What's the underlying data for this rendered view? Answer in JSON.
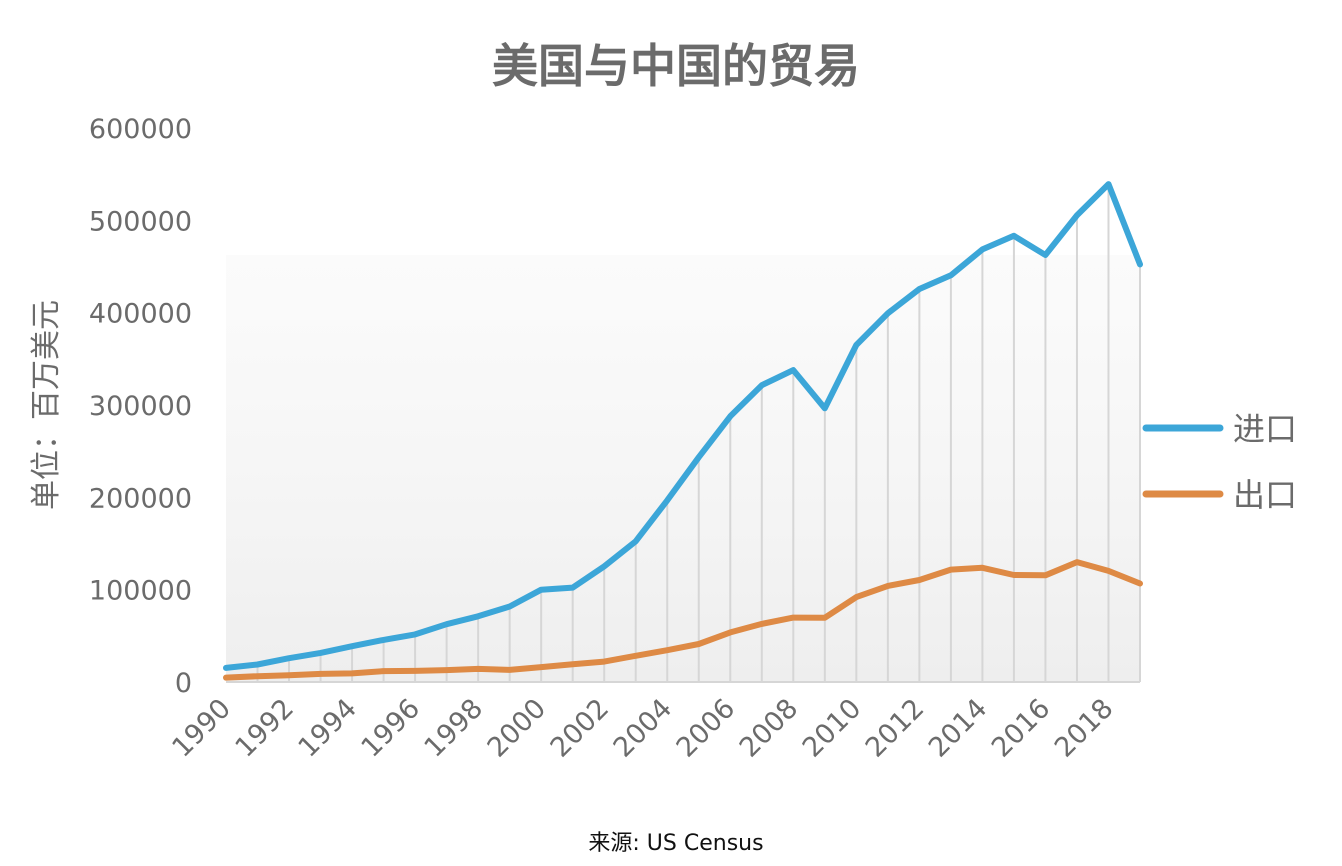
{
  "chart_data": {
    "type": "line",
    "title": "美国与中国的贸易",
    "xlabel": "",
    "ylabel": "单位：百万美元",
    "source": "来源: US Census",
    "ylim": [
      0,
      600000
    ],
    "yticks": [
      "0",
      "100000",
      "200000",
      "300000",
      "400000",
      "500000",
      "600000"
    ],
    "ytick_values": [
      0,
      100000,
      200000,
      300000,
      400000,
      500000,
      600000
    ],
    "xtick_labels": [
      "1990",
      "1992",
      "1994",
      "1996",
      "1998",
      "2000",
      "2002",
      "2004",
      "2006",
      "2008",
      "2010",
      "2012",
      "2014",
      "2016",
      "2018"
    ],
    "x": [
      1990,
      1991,
      1992,
      1993,
      1994,
      1995,
      1996,
      1997,
      1998,
      1999,
      2000,
      2001,
      2002,
      2003,
      2004,
      2005,
      2006,
      2007,
      2008,
      2009,
      2010,
      2011,
      2012,
      2013,
      2014,
      2015,
      2016,
      2017,
      2018,
      2019
    ],
    "legend_position": "right",
    "grid": "vertical",
    "series": [
      {
        "name": "进口",
        "color": "#3ca6d8",
        "values": [
          15237,
          18969,
          25728,
          31540,
          38787,
          45543,
          51513,
          62558,
          71169,
          81788,
          100018,
          102278,
          125193,
          152436,
          196682,
          243470,
          287774,
          321443,
          337773,
          296374,
          364953,
          399371,
          425619,
          440430,
          468475,
          483202,
          462420,
          505470,
          539243,
          452243
        ]
      },
      {
        "name": "出口",
        "color": "#de8a45",
        "values": [
          4806,
          6278,
          7418,
          8763,
          9282,
          11754,
          11993,
          12862,
          14241,
          13111,
          16185,
          19182,
          22128,
          28368,
          34428,
          41192,
          53673,
          62937,
          69733,
          69497,
          91911,
          104122,
          110516,
          121746,
          123657,
          115873,
          115546,
          129894,
          120281,
          106627
        ]
      }
    ]
  }
}
